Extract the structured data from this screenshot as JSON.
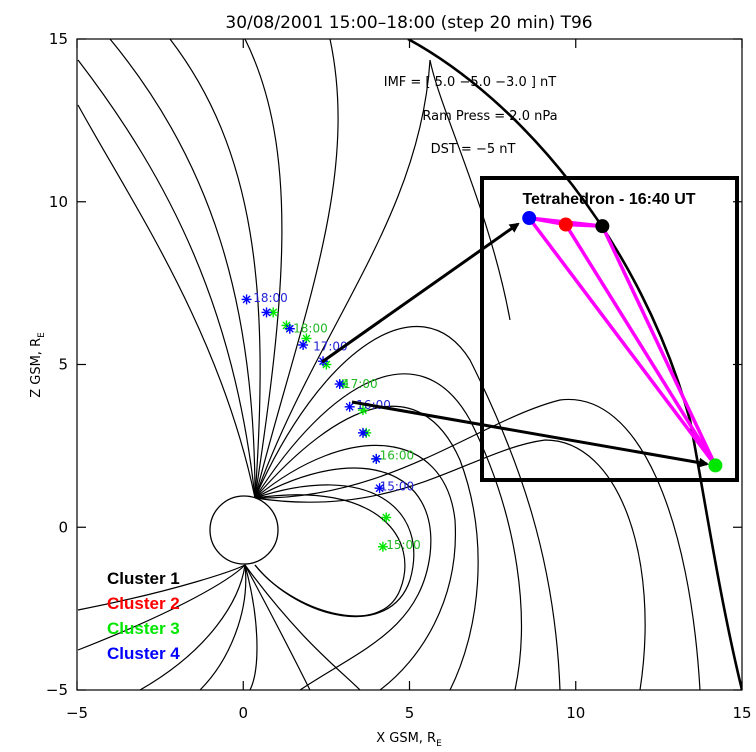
{
  "colors": {
    "cluster1": "#000000",
    "cluster2": "#ff0000",
    "cluster3": "#00e600",
    "cluster4": "#0000ff",
    "inset_edges": "#ff00ff",
    "time_label_c3": "#22b822",
    "time_label_c4": "#2222d6"
  },
  "chart_data": {
    "type": "scatter",
    "title": "30/08/2001 15:00–18:00 (step 20 min) T96",
    "xlabel": "X GSM, R",
    "xlabel_sub": "E",
    "ylabel": "Z GSM, R",
    "ylabel_sub": "E",
    "xlim": [
      -5,
      15
    ],
    "ylim": [
      -5,
      15
    ],
    "xticks": [
      -5,
      0,
      5,
      10,
      15
    ],
    "yticks": [
      -5,
      0,
      5,
      10,
      15
    ],
    "grid": false,
    "parameters": [
      "IMF = [  5.0 −5.0 −3.0 ] nT",
      "Ram Press =  2.0 nPa",
      "DST =  −5 nT"
    ],
    "series": [
      {
        "name": "Cluster 3",
        "color_key": "cluster3",
        "points": [
          {
            "x": 4.2,
            "y": -0.6
          },
          {
            "x": 4.3,
            "y": 0.3
          },
          {
            "x": 4.0,
            "y": 2.1
          },
          {
            "x": 3.7,
            "y": 2.9
          },
          {
            "x": 3.6,
            "y": 3.6
          },
          {
            "x": 3.0,
            "y": 4.4
          },
          {
            "x": 2.5,
            "y": 5.0
          },
          {
            "x": 1.9,
            "y": 5.8
          },
          {
            "x": 1.3,
            "y": 6.2
          },
          {
            "x": 0.9,
            "y": 6.6
          }
        ]
      },
      {
        "name": "Cluster 4",
        "color_key": "cluster4",
        "points": [
          {
            "x": 4.1,
            "y": 1.2
          },
          {
            "x": 4.0,
            "y": 2.1
          },
          {
            "x": 3.6,
            "y": 2.9
          },
          {
            "x": 3.2,
            "y": 3.7
          },
          {
            "x": 2.9,
            "y": 4.4
          },
          {
            "x": 2.4,
            "y": 5.1
          },
          {
            "x": 1.8,
            "y": 5.6
          },
          {
            "x": 1.4,
            "y": 6.1
          },
          {
            "x": 0.7,
            "y": 6.6
          },
          {
            "x": 0.1,
            "y": 7.0
          }
        ]
      }
    ],
    "time_labels": [
      {
        "text": "18:00",
        "x": 0.3,
        "y": 7.05,
        "color_key": "time_label_c4"
      },
      {
        "text": "18:00",
        "x": 1.5,
        "y": 6.1,
        "color_key": "time_label_c3"
      },
      {
        "text": "17:00",
        "x": 2.1,
        "y": 5.55,
        "color_key": "time_label_c4"
      },
      {
        "text": "17:00",
        "x": 3.0,
        "y": 4.4,
        "color_key": "time_label_c3"
      },
      {
        "text": "16:00",
        "x": 3.4,
        "y": 3.75,
        "color_key": "time_label_c4"
      },
      {
        "text": "16:00",
        "x": 4.1,
        "y": 2.2,
        "color_key": "time_label_c3"
      },
      {
        "text": "15:00",
        "x": 4.1,
        "y": 1.25,
        "color_key": "time_label_c4"
      },
      {
        "text": "15:00",
        "x": 4.3,
        "y": -0.55,
        "color_key": "time_label_c3"
      }
    ],
    "legend": {
      "placement": "bottom-left",
      "entries": [
        {
          "label": "Cluster 1",
          "color_key": "cluster1"
        },
        {
          "label": "Cluster 2",
          "color_key": "cluster2"
        },
        {
          "label": "Cluster 3",
          "color_key": "cluster3"
        },
        {
          "label": "Cluster 4",
          "color_key": "cluster4"
        }
      ]
    },
    "inset": {
      "title": "Tetrahedron - 16:40 UT",
      "vertices": [
        {
          "label": "Cluster 4",
          "color_key": "cluster4",
          "x": 8.6,
          "y": 9.5
        },
        {
          "label": "Cluster 2",
          "color_key": "cluster2",
          "x": 9.7,
          "y": 9.3
        },
        {
          "label": "Cluster 1",
          "color_key": "cluster1",
          "x": 10.8,
          "y": 9.25
        },
        {
          "label": "Cluster 3",
          "color_key": "cluster3",
          "x": 14.2,
          "y": 1.9
        }
      ]
    }
  }
}
